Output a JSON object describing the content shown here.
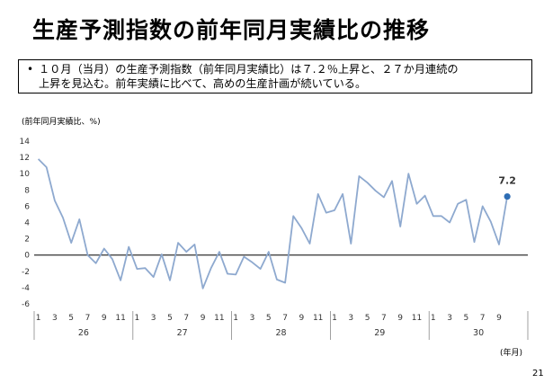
{
  "slide": {
    "title": "生産予測指数の前年同月実績比の推移",
    "bullet_marker": "•",
    "bullet_lines": [
      "１０月（当月）の生産予測指数（前年同月実績比）は７.２％上昇と、２７か月連続の",
      "上昇を見込む。前年実績に比べて、高めの生産計画が続いている。"
    ],
    "page_number": "21"
  },
  "chart_data": {
    "type": "line",
    "ylabel": "(前年同月実績比、%)",
    "xunit": "(年月)",
    "ylim": [
      -6,
      14
    ],
    "yticks": [
      14,
      12,
      10,
      8,
      6,
      4,
      2,
      0,
      -2,
      -4,
      -6
    ],
    "grid": false,
    "years": [
      "26",
      "27",
      "28",
      "29",
      "30"
    ],
    "month_tick_labels": [
      "1",
      "3",
      "5",
      "7",
      "9",
      "11",
      "1",
      "3",
      "5",
      "7",
      "9",
      "11",
      "1",
      "3",
      "5",
      "7",
      "9",
      "11",
      "1",
      "3",
      "5",
      "7",
      "9",
      "11",
      "1",
      "3",
      "5",
      "7",
      "9"
    ],
    "callout": "7.2",
    "series": [
      {
        "color": "#8ea9cf",
        "marker_color": "#2e6db4",
        "values": [
          11.8,
          10.8,
          6.7,
          4.6,
          1.5,
          4.4,
          0.0,
          -1.0,
          0.8,
          -0.5,
          -3.1,
          1.0,
          -1.7,
          -1.6,
          -2.7,
          0.1,
          -3.1,
          1.5,
          0.4,
          1.3,
          -4.1,
          -1.6,
          0.4,
          -2.3,
          -2.4,
          -0.2,
          -0.9,
          -1.7,
          0.4,
          -3.0,
          -3.4,
          4.8,
          3.3,
          1.4,
          7.5,
          5.2,
          5.5,
          7.5,
          1.4,
          9.7,
          8.9,
          7.9,
          7.1,
          9.1,
          3.5,
          10.0,
          6.3,
          7.3,
          4.8,
          4.8,
          4.0,
          6.3,
          6.8,
          1.6,
          6.0,
          4.1,
          1.3,
          7.2
        ]
      }
    ]
  }
}
